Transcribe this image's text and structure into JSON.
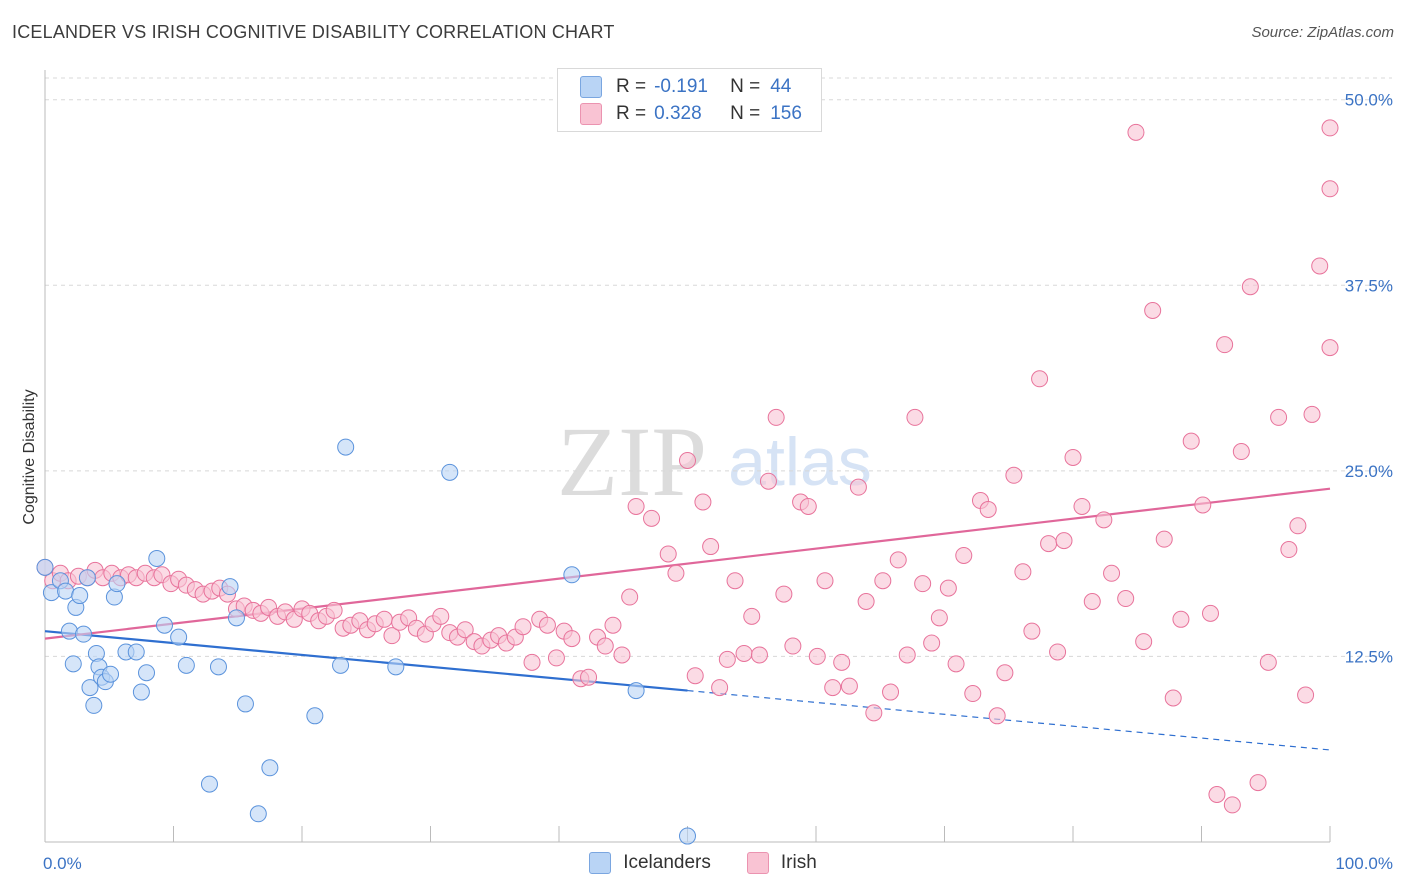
{
  "title": "ICELANDER VS IRISH COGNITIVE DISABILITY CORRELATION CHART",
  "source": "Source: ZipAtlas.com",
  "watermark": {
    "zip": "ZIP",
    "atlas": "atlas"
  },
  "legend": {
    "rows": [
      {
        "r_label": "R =",
        "r_value": "-0.191",
        "n_label": "N =",
        "n_value": "44",
        "color": "#b9d4f5"
      },
      {
        "r_label": "R =",
        "r_value": "0.328",
        "n_label": "N =",
        "n_value": "156",
        "color": "#f9c3d3"
      }
    ]
  },
  "bottom_legend": [
    "Icelanders",
    "Irish"
  ],
  "chart_data": {
    "type": "scatter",
    "title": "ICELANDER VS IRISH COGNITIVE DISABILITY CORRELATION CHART",
    "xlabel": "",
    "ylabel": "Cognitive Disability",
    "xlim": [
      0,
      100
    ],
    "ylim": [
      0,
      52
    ],
    "x_tick_labels": [
      "0.0%",
      "100.0%"
    ],
    "y_ticks": [
      12.5,
      25.0,
      37.5,
      50.0
    ],
    "y_tick_labels": [
      "12.5%",
      "25.0%",
      "37.5%",
      "50.0%"
    ],
    "grid": true,
    "series": [
      {
        "name": "Icelanders",
        "color": "#5b93dc",
        "fill": "#b9d4f5",
        "trend": {
          "x0": 0,
          "y0": 14.2,
          "x1": 50,
          "y1": 10.2,
          "dash_to": 100,
          "dash_y": 6.2
        },
        "points": [
          [
            0,
            18.5
          ],
          [
            0.5,
            16.8
          ],
          [
            1.2,
            17.6
          ],
          [
            1.6,
            16.9
          ],
          [
            1.9,
            14.2
          ],
          [
            2.2,
            12
          ],
          [
            2.4,
            15.8
          ],
          [
            2.7,
            16.6
          ],
          [
            3,
            14
          ],
          [
            3.3,
            17.8
          ],
          [
            3.5,
            10.4
          ],
          [
            3.8,
            9.2
          ],
          [
            4,
            12.7
          ],
          [
            4.2,
            11.8
          ],
          [
            4.4,
            11.1
          ],
          [
            4.7,
            10.8
          ],
          [
            5.1,
            11.3
          ],
          [
            5.4,
            16.5
          ],
          [
            5.6,
            17.4
          ],
          [
            6.3,
            12.8
          ],
          [
            7.1,
            12.8
          ],
          [
            7.5,
            10.1
          ],
          [
            7.9,
            11.4
          ],
          [
            8.7,
            19.1
          ],
          [
            9.3,
            14.6
          ],
          [
            10.4,
            13.8
          ],
          [
            11,
            11.9
          ],
          [
            12.8,
            3.9
          ],
          [
            13.5,
            11.8
          ],
          [
            14.4,
            17.2
          ],
          [
            14.9,
            15.1
          ],
          [
            15.6,
            9.3
          ],
          [
            16.6,
            1.9
          ],
          [
            17.5,
            5.0
          ],
          [
            21,
            8.5
          ],
          [
            23,
            11.9
          ],
          [
            23.4,
            26.6
          ],
          [
            27.3,
            11.8
          ],
          [
            31.5,
            24.9
          ],
          [
            41,
            18
          ],
          [
            46,
            10.2
          ],
          [
            50,
            0.4
          ]
        ]
      },
      {
        "name": "Irish",
        "color": "#e8739b",
        "fill": "#f9c3d3",
        "trend": {
          "x0": 0,
          "y0": 13.7,
          "x1": 100,
          "y1": 23.8
        },
        "points": [
          [
            0,
            18.5
          ],
          [
            0.6,
            17.6
          ],
          [
            1.2,
            18.1
          ],
          [
            1.8,
            17.6
          ],
          [
            2.6,
            17.9
          ],
          [
            3.3,
            17.8
          ],
          [
            3.9,
            18.3
          ],
          [
            4.5,
            17.8
          ],
          [
            5.2,
            18.1
          ],
          [
            5.9,
            17.8
          ],
          [
            6.5,
            18.0
          ],
          [
            7.1,
            17.8
          ],
          [
            7.8,
            18.1
          ],
          [
            8.5,
            17.8
          ],
          [
            9.1,
            18.0
          ],
          [
            9.8,
            17.4
          ],
          [
            10.4,
            17.7
          ],
          [
            11.0,
            17.3
          ],
          [
            11.7,
            17.0
          ],
          [
            12.3,
            16.7
          ],
          [
            13,
            16.9
          ],
          [
            13.6,
            17.1
          ],
          [
            14.2,
            16.7
          ],
          [
            14.9,
            15.7
          ],
          [
            15.5,
            15.9
          ],
          [
            16.2,
            15.6
          ],
          [
            16.8,
            15.4
          ],
          [
            17.4,
            15.8
          ],
          [
            18.1,
            15.2
          ],
          [
            18.7,
            15.5
          ],
          [
            19.4,
            15.0
          ],
          [
            20,
            15.7
          ],
          [
            20.6,
            15.4
          ],
          [
            21.3,
            14.9
          ],
          [
            21.9,
            15.2
          ],
          [
            22.5,
            15.6
          ],
          [
            23.2,
            14.4
          ],
          [
            23.8,
            14.6
          ],
          [
            24.5,
            14.9
          ],
          [
            25.1,
            14.3
          ],
          [
            25.7,
            14.7
          ],
          [
            26.4,
            15.0
          ],
          [
            27,
            13.9
          ],
          [
            27.6,
            14.8
          ],
          [
            28.3,
            15.1
          ],
          [
            28.9,
            14.4
          ],
          [
            29.6,
            14.0
          ],
          [
            30.2,
            14.7
          ],
          [
            30.8,
            15.2
          ],
          [
            31.5,
            14.1
          ],
          [
            32.1,
            13.8
          ],
          [
            32.7,
            14.3
          ],
          [
            33.4,
            13.5
          ],
          [
            34,
            13.2
          ],
          [
            34.7,
            13.6
          ],
          [
            35.3,
            13.9
          ],
          [
            35.9,
            13.4
          ],
          [
            36.6,
            13.8
          ],
          [
            37.2,
            14.5
          ],
          [
            37.9,
            12.1
          ],
          [
            38.5,
            15.0
          ],
          [
            39.1,
            14.6
          ],
          [
            39.8,
            12.4
          ],
          [
            40.4,
            14.2
          ],
          [
            41,
            13.7
          ],
          [
            41.7,
            11.0
          ],
          [
            42.3,
            11.1
          ],
          [
            43,
            13.8
          ],
          [
            43.6,
            13.2
          ],
          [
            44.2,
            14.6
          ],
          [
            44.9,
            12.6
          ],
          [
            45.5,
            16.5
          ],
          [
            46,
            22.6
          ],
          [
            47.2,
            21.8
          ],
          [
            48.5,
            19.4
          ],
          [
            49.1,
            18.1
          ],
          [
            50,
            25.7
          ],
          [
            50.6,
            11.2
          ],
          [
            51.2,
            22.9
          ],
          [
            51.8,
            19.9
          ],
          [
            52.5,
            10.4
          ],
          [
            53.1,
            12.3
          ],
          [
            53.7,
            17.6
          ],
          [
            54.4,
            12.7
          ],
          [
            55,
            15.2
          ],
          [
            55.6,
            12.6
          ],
          [
            56.3,
            24.3
          ],
          [
            56.9,
            28.6
          ],
          [
            57.5,
            16.7
          ],
          [
            58.2,
            13.2
          ],
          [
            58.8,
            22.9
          ],
          [
            59.4,
            22.6
          ],
          [
            60.1,
            12.5
          ],
          [
            60.7,
            17.6
          ],
          [
            61.3,
            10.4
          ],
          [
            62,
            12.1
          ],
          [
            62.6,
            10.5
          ],
          [
            63.3,
            23.9
          ],
          [
            63.9,
            16.2
          ],
          [
            64.5,
            8.7
          ],
          [
            65.2,
            17.6
          ],
          [
            65.8,
            10.1
          ],
          [
            66.4,
            19.0
          ],
          [
            67.1,
            12.6
          ],
          [
            67.7,
            28.6
          ],
          [
            68.3,
            17.4
          ],
          [
            69,
            13.4
          ],
          [
            69.6,
            15.1
          ],
          [
            70.3,
            17.1
          ],
          [
            70.9,
            12.0
          ],
          [
            71.5,
            19.3
          ],
          [
            72.2,
            10.0
          ],
          [
            72.8,
            23.0
          ],
          [
            73.4,
            22.4
          ],
          [
            74.1,
            8.5
          ],
          [
            74.7,
            11.4
          ],
          [
            75.4,
            24.7
          ],
          [
            76.1,
            18.2
          ],
          [
            76.8,
            14.2
          ],
          [
            77.4,
            31.2
          ],
          [
            78.1,
            20.1
          ],
          [
            78.8,
            12.8
          ],
          [
            79.3,
            20.3
          ],
          [
            80,
            25.9
          ],
          [
            80.7,
            22.6
          ],
          [
            81.5,
            16.2
          ],
          [
            82.4,
            21.7
          ],
          [
            83,
            18.1
          ],
          [
            84.1,
            16.4
          ],
          [
            84.9,
            47.8
          ],
          [
            85.5,
            13.5
          ],
          [
            86.2,
            35.8
          ],
          [
            87.1,
            20.4
          ],
          [
            87.8,
            9.7
          ],
          [
            88.4,
            15.0
          ],
          [
            89.2,
            27.0
          ],
          [
            90.1,
            22.7
          ],
          [
            90.7,
            15.4
          ],
          [
            91.2,
            3.2
          ],
          [
            91.8,
            33.5
          ],
          [
            92.4,
            2.5
          ],
          [
            93.1,
            26.3
          ],
          [
            93.8,
            37.4
          ],
          [
            94.4,
            4.0
          ],
          [
            95.2,
            12.1
          ],
          [
            96,
            28.6
          ],
          [
            96.8,
            19.7
          ],
          [
            97.5,
            21.3
          ],
          [
            98.1,
            9.9
          ],
          [
            98.6,
            28.8
          ],
          [
            99.2,
            38.8
          ],
          [
            100,
            33.3
          ],
          [
            100,
            48.1
          ],
          [
            100,
            44.0
          ]
        ]
      }
    ]
  }
}
